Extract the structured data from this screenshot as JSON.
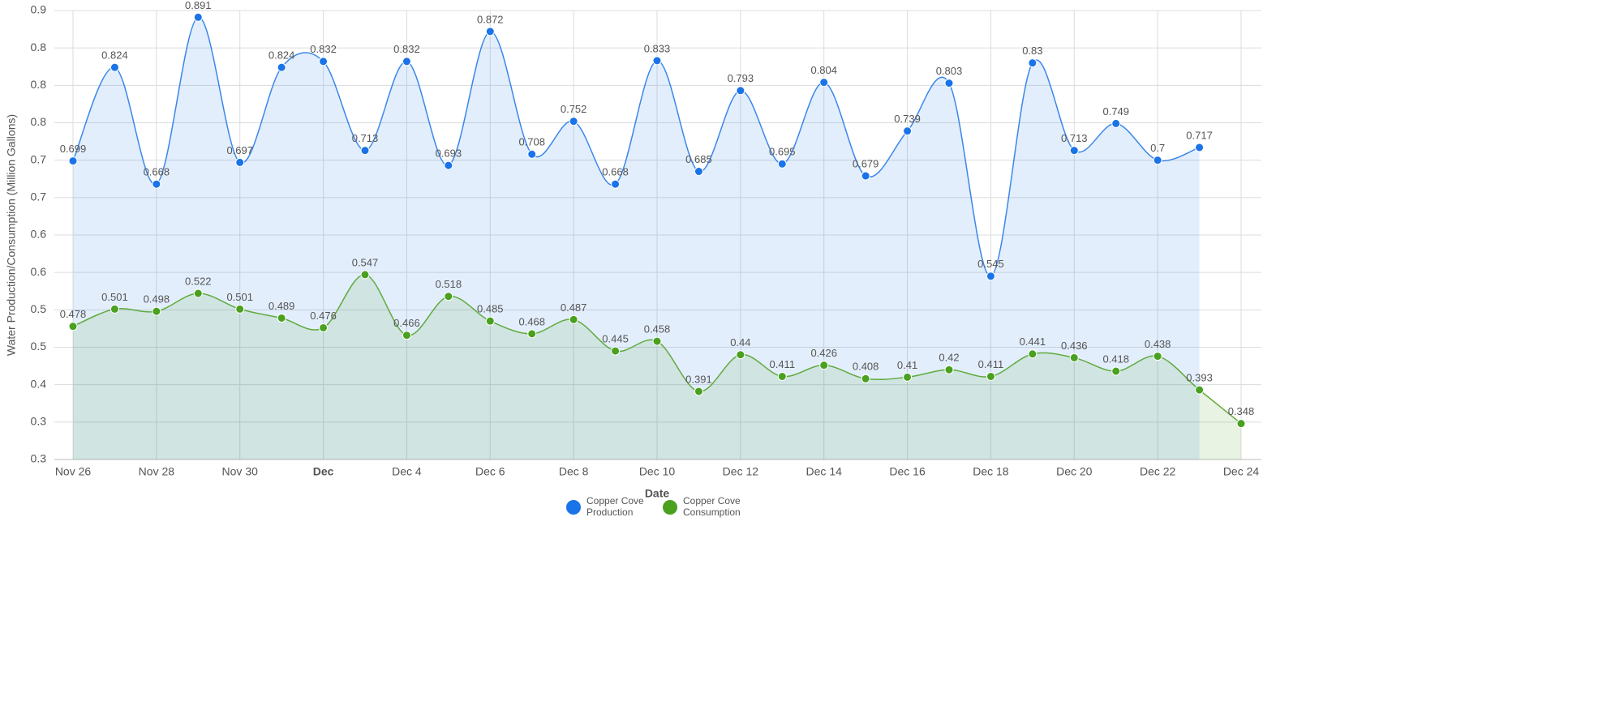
{
  "chart_data": {
    "type": "line",
    "x_label": "Date",
    "y_label": "Water Production/Consumption (Million Gallons)",
    "categories": [
      "Nov 26",
      null,
      "Nov 28",
      null,
      "Nov 30",
      null,
      "Dec",
      null,
      "Dec 4",
      null,
      "Dec 6",
      null,
      "Dec 8",
      null,
      "Dec 10",
      null,
      "Dec 12",
      null,
      "Dec 14",
      null,
      "Dec 16",
      null,
      "Dec 18",
      null,
      "Dec 20",
      null,
      "Dec 22",
      null,
      "Dec 24"
    ],
    "series": [
      {
        "name": "Copper Cove Production",
        "color": "#1a73e8",
        "values": [
          0.699,
          0.824,
          0.668,
          0.891,
          0.697,
          0.824,
          0.832,
          0.713,
          0.832,
          0.693,
          0.872,
          0.708,
          0.752,
          0.668,
          0.833,
          0.685,
          0.793,
          0.695,
          0.804,
          0.679,
          0.739,
          0.803,
          0.545,
          0.83,
          0.713,
          0.749,
          0.7,
          0.717,
          null
        ]
      },
      {
        "name": "Copper Cove Consumption",
        "color": "#4aa01f",
        "values": [
          0.478,
          0.501,
          0.498,
          0.522,
          0.501,
          0.489,
          0.476,
          0.547,
          0.466,
          0.518,
          0.485,
          0.468,
          0.487,
          0.445,
          0.458,
          0.391,
          0.44,
          0.411,
          0.426,
          0.408,
          0.41,
          0.42,
          0.411,
          0.441,
          0.436,
          0.418,
          0.438,
          0.393,
          0.348
        ]
      }
    ],
    "ylim": [
      0.3,
      0.9
    ],
    "yticks": [
      0.3,
      {
        "value": 0.35,
        "label": "0.3"
      },
      0.4,
      {
        "value": 0.45,
        "label": "0.5"
      },
      0.5,
      {
        "value": 0.55,
        "label": "0.6"
      },
      0.6,
      {
        "value": 0.65,
        "label": "0.7"
      },
      0.7,
      {
        "value": 0.75,
        "label": "0.8"
      },
      0.8,
      {
        "value": 0.85,
        "label": "0.8"
      },
      0.9
    ],
    "grid": true,
    "legend": "bottom"
  }
}
